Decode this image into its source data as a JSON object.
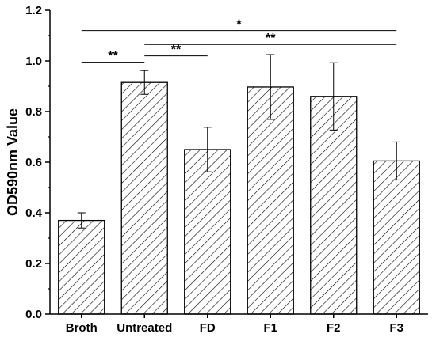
{
  "chart_data": {
    "type": "bar",
    "title": "",
    "xlabel": "",
    "ylabel": "OD590nm Value",
    "ylim": [
      0.0,
      1.2
    ],
    "yticks": [
      "0.0",
      "0.2",
      "0.4",
      "0.6",
      "0.8",
      "1.0",
      "1.2"
    ],
    "categories": [
      "Broth",
      "Untreated",
      "FD",
      "F1",
      "F2",
      "F3"
    ],
    "values": [
      0.37,
      0.915,
      0.65,
      0.897,
      0.86,
      0.605
    ],
    "error": [
      0.03,
      0.047,
      0.088,
      0.128,
      0.133,
      0.075
    ],
    "bar_fill": "hatched",
    "bar_color": "#000000",
    "significance": [
      {
        "from": 0,
        "to": 5,
        "y": 1.12,
        "label": "*"
      },
      {
        "from": 1,
        "to": 5,
        "y": 1.065,
        "label": "**"
      },
      {
        "from": 1,
        "to": 2,
        "y": 1.02,
        "label": "**"
      },
      {
        "from": 0,
        "to": 1,
        "y": 0.995,
        "label": "**"
      }
    ]
  }
}
